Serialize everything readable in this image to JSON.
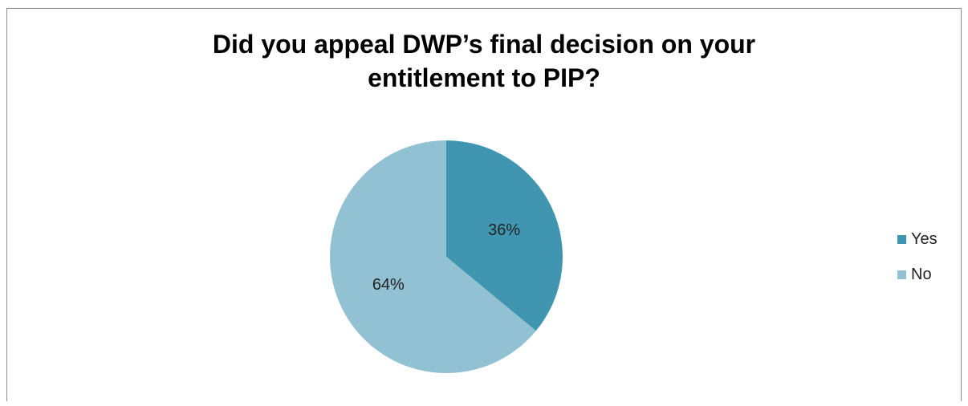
{
  "chart_data": {
    "type": "pie",
    "title_lines": [
      "Did you appeal DWP’s final decision on your",
      "entitlement to PIP?"
    ],
    "slices": [
      {
        "label": "Yes",
        "value": 36,
        "display": "36%",
        "color": "#4096b0"
      },
      {
        "label": "No",
        "value": 64,
        "display": "64%",
        "color": "#93c1d4"
      }
    ],
    "legend_position": "right"
  }
}
